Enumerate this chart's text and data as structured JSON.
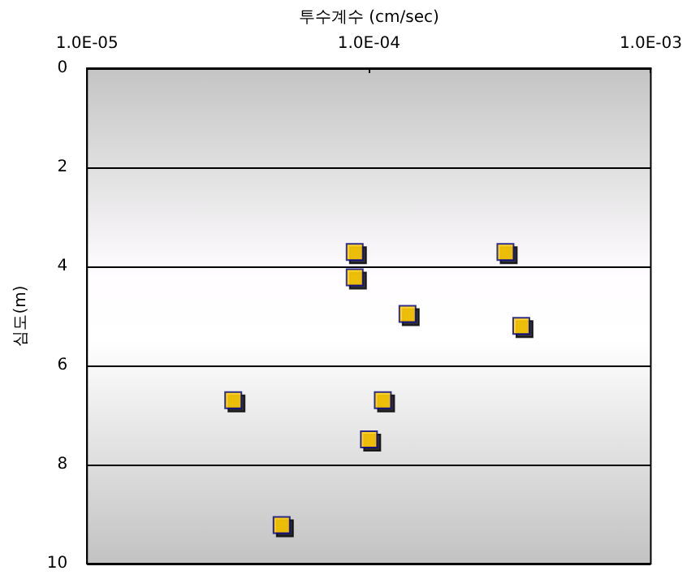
{
  "chart_data": {
    "type": "scatter",
    "xlabel": "투수계수 (cm/sec)",
    "ylabel": "심도(m)",
    "x": [
      8.9e-05,
      0.000305,
      8.9e-05,
      0.000137,
      0.000347,
      3.3e-05,
      0.000112,
      0.0001,
      4.9e-05
    ],
    "series": [
      {
        "color": "#ffcc00",
        "values": [
          3.71,
          3.71,
          4.22,
          4.96,
          5.2,
          6.7,
          6.7,
          7.49,
          9.22
        ]
      }
    ],
    "xlim": [
      1e-05,
      0.001
    ],
    "xticks": [
      {
        "value": 1e-05,
        "label": "1.0E-05"
      },
      {
        "value": 0.0001,
        "label": "1.0E-04"
      },
      {
        "value": 0.001,
        "label": "1.0E-03"
      }
    ],
    "ylim": [
      10,
      0
    ],
    "yticks": [
      0,
      2,
      4,
      6,
      8,
      10
    ],
    "log": "x",
    "grid": "y",
    "marker": "square"
  }
}
